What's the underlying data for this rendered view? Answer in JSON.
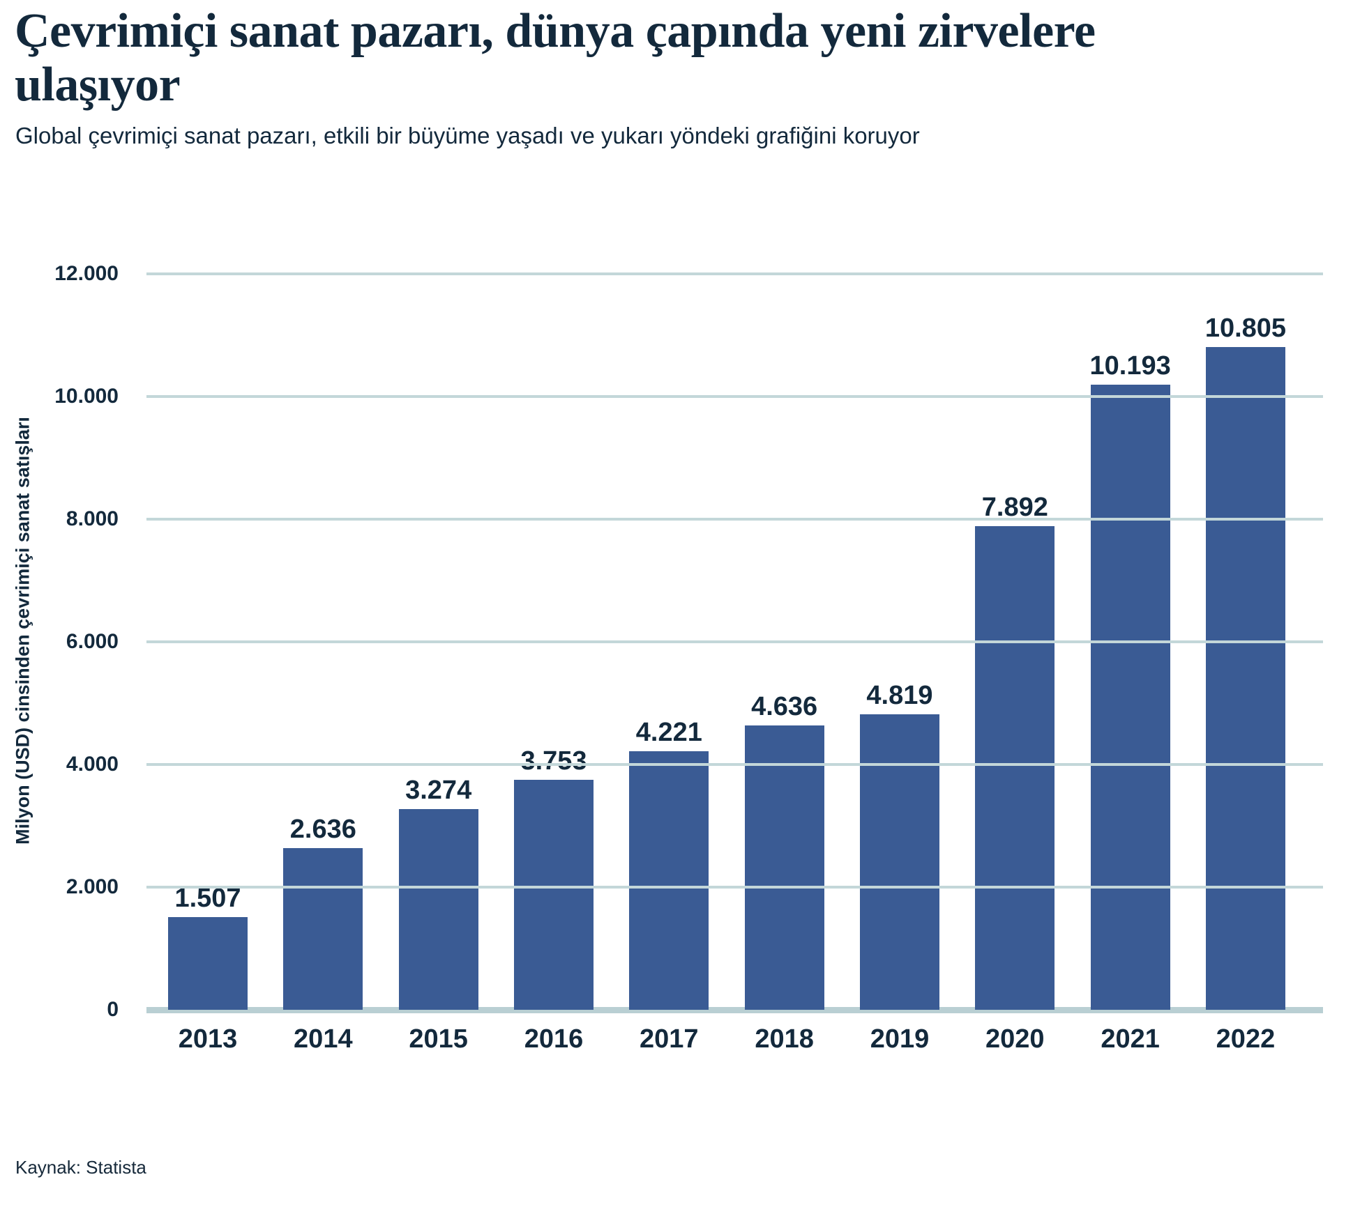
{
  "header": {
    "title": "Çevrimiçi sanat pazarı, dünya çapında yeni zirvelere ulaşıyor",
    "title_lines": [
      "Çevrimiçi sanat pazarı, dünya çapında yeni zirvelere",
      "ulaşıyor"
    ],
    "subtitle": "Global çevrimiçi sanat pazarı, etkili bir büyüme yaşadı ve yukarı yöndeki grafiğini koruyor"
  },
  "source": "Kaynak: Statista",
  "chart_data": {
    "type": "bar",
    "title": "",
    "xlabel": "",
    "ylabel": "Milyon (USD) cinsinden çevrimiçi sanat satışları",
    "categories": [
      "2013",
      "2014",
      "2015",
      "2016",
      "2017",
      "2018",
      "2019",
      "2020",
      "2021",
      "2022"
    ],
    "values": [
      1507,
      2636,
      3274,
      3753,
      4221,
      4636,
      4819,
      7892,
      10193,
      10805
    ],
    "value_labels": [
      "1.507",
      "2.636",
      "3.274",
      "3.753",
      "4.221",
      "4.636",
      "4.819",
      "7.892",
      "10.193",
      "10.805"
    ],
    "ylim": [
      0,
      12000
    ],
    "ytick_step": 2000,
    "ytick_labels": [
      "12.000",
      "10.000",
      "8.000",
      "6.000",
      "4.000",
      "2.000",
      "0"
    ],
    "grid": true,
    "legend": false,
    "colors": {
      "bar": "#3a5b94",
      "text": "#13293c",
      "gridline": "#c3d7d9",
      "axis_line": "#b9cfd3",
      "background": "#ffffff"
    }
  }
}
